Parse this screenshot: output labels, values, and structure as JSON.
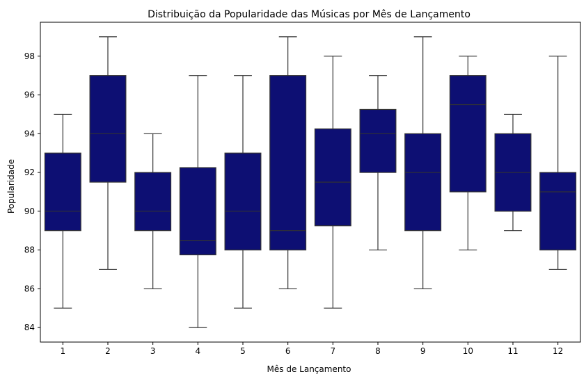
{
  "chart_data": {
    "type": "box",
    "title": "Distribuição da Popularidade das Músicas por Mês de Lançamento",
    "xlabel": "Mês de Lançamento",
    "ylabel": "Popularidade",
    "categories": [
      "1",
      "2",
      "3",
      "4",
      "5",
      "6",
      "7",
      "8",
      "9",
      "10",
      "11",
      "12"
    ],
    "boxes": [
      {
        "min": 85,
        "q1": 89,
        "median": 90,
        "q3": 93,
        "max": 95
      },
      {
        "min": 87,
        "q1": 91.5,
        "median": 94,
        "q3": 97,
        "max": 99
      },
      {
        "min": 86,
        "q1": 89,
        "median": 90,
        "q3": 92,
        "max": 94
      },
      {
        "min": 84,
        "q1": 87.75,
        "median": 88.5,
        "q3": 92.25,
        "max": 97
      },
      {
        "min": 85,
        "q1": 88,
        "median": 90,
        "q3": 93,
        "max": 97
      },
      {
        "min": 86,
        "q1": 88,
        "median": 89,
        "q3": 97,
        "max": 99
      },
      {
        "min": 85,
        "q1": 89.25,
        "median": 91.5,
        "q3": 94.25,
        "max": 98
      },
      {
        "min": 88,
        "q1": 92,
        "median": 94,
        "q3": 95.25,
        "max": 97
      },
      {
        "min": 86,
        "q1": 89,
        "median": 92,
        "q3": 94,
        "max": 99
      },
      {
        "min": 88,
        "q1": 91,
        "median": 95.5,
        "q3": 97,
        "max": 98
      },
      {
        "min": 89,
        "q1": 90,
        "median": 92,
        "q3": 94,
        "max": 95
      },
      {
        "min": 87,
        "q1": 88,
        "median": 91,
        "q3": 92,
        "max": 98
      }
    ],
    "yticks": [
      84,
      86,
      88,
      90,
      92,
      94,
      96,
      98
    ],
    "ylim": [
      83.25,
      99.75
    ],
    "grid": false,
    "colors": {
      "box_fill": "#0d0f73",
      "line": "#333333",
      "axis": "#000000"
    }
  }
}
